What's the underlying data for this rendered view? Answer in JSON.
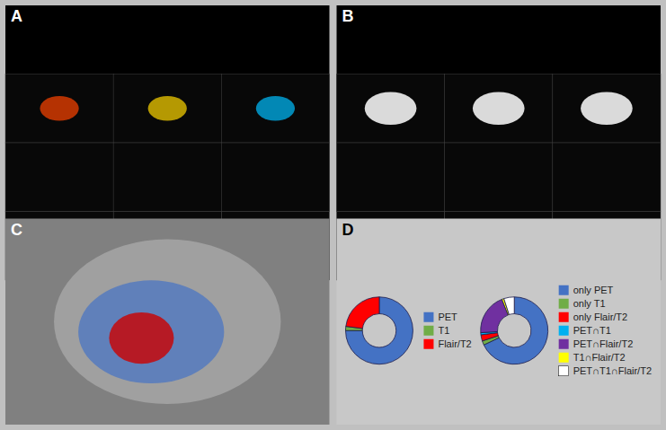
{
  "chart_data": [
    {
      "type": "image",
      "title": "A"
    },
    {
      "type": "image",
      "title": "B"
    },
    {
      "type": "image",
      "title": "C"
    },
    {
      "type": "pie",
      "title": "D",
      "categories": [
        "PET",
        "T1",
        "Flair/T2"
      ],
      "values": [
        75,
        2,
        23
      ],
      "colors": [
        "#4472C4",
        "#70AD47",
        "#FF0000"
      ],
      "legend": "right"
    },
    {
      "type": "pie",
      "categories": [
        "only PET",
        "only T1",
        "only Flair/T2",
        "PET∩T1",
        "PET∩Flair/T2",
        "T1∩Flair/T2",
        "PET∩T1∩Flair/T2"
      ],
      "values": [
        68,
        2,
        3,
        1,
        20,
        1,
        5
      ],
      "colors": [
        "#4472C4",
        "#70AD47",
        "#FF0000",
        "#00B0F0",
        "#7030A0",
        "#FFFF00",
        "#FFFFFF"
      ],
      "legend": "right"
    }
  ]
}
